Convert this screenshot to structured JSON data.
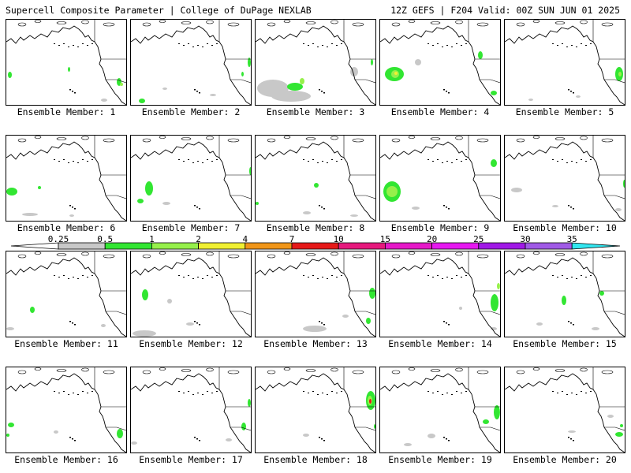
{
  "header": {
    "left": "Supercell Composite Parameter | College of DuPage NEXLAB",
    "right": "12Z GEFS | F204 Valid: 00Z SUN JUN 01 2025"
  },
  "members": [
    "Ensemble Member: 1",
    "Ensemble Member: 2",
    "Ensemble Member: 3",
    "Ensemble Member: 4",
    "Ensemble Member: 5",
    "Ensemble Member: 6",
    "Ensemble Member: 7",
    "Ensemble Member: 8",
    "Ensemble Member: 9",
    "Ensemble Member: 10",
    "Ensemble Member: 11",
    "Ensemble Member: 12",
    "Ensemble Member: 13",
    "Ensemble Member: 14",
    "Ensemble Member: 15",
    "Ensemble Member: 16",
    "Ensemble Member: 17",
    "Ensemble Member: 18",
    "Ensemble Member: 19",
    "Ensemble Member: 20"
  ],
  "colorbar": {
    "ticks": [
      "0.25",
      "0.5",
      "1",
      "2",
      "4",
      "7",
      "10",
      "15",
      "20",
      "25",
      "30",
      "35"
    ],
    "colors": [
      "#c8c8c8",
      "#32e632",
      "#96f04b",
      "#f0f032",
      "#f09619",
      "#e61919",
      "#e6197d",
      "#e619c8",
      "#e619f0",
      "#a019e6",
      "#a05ae6",
      "#32e6f0"
    ]
  }
}
